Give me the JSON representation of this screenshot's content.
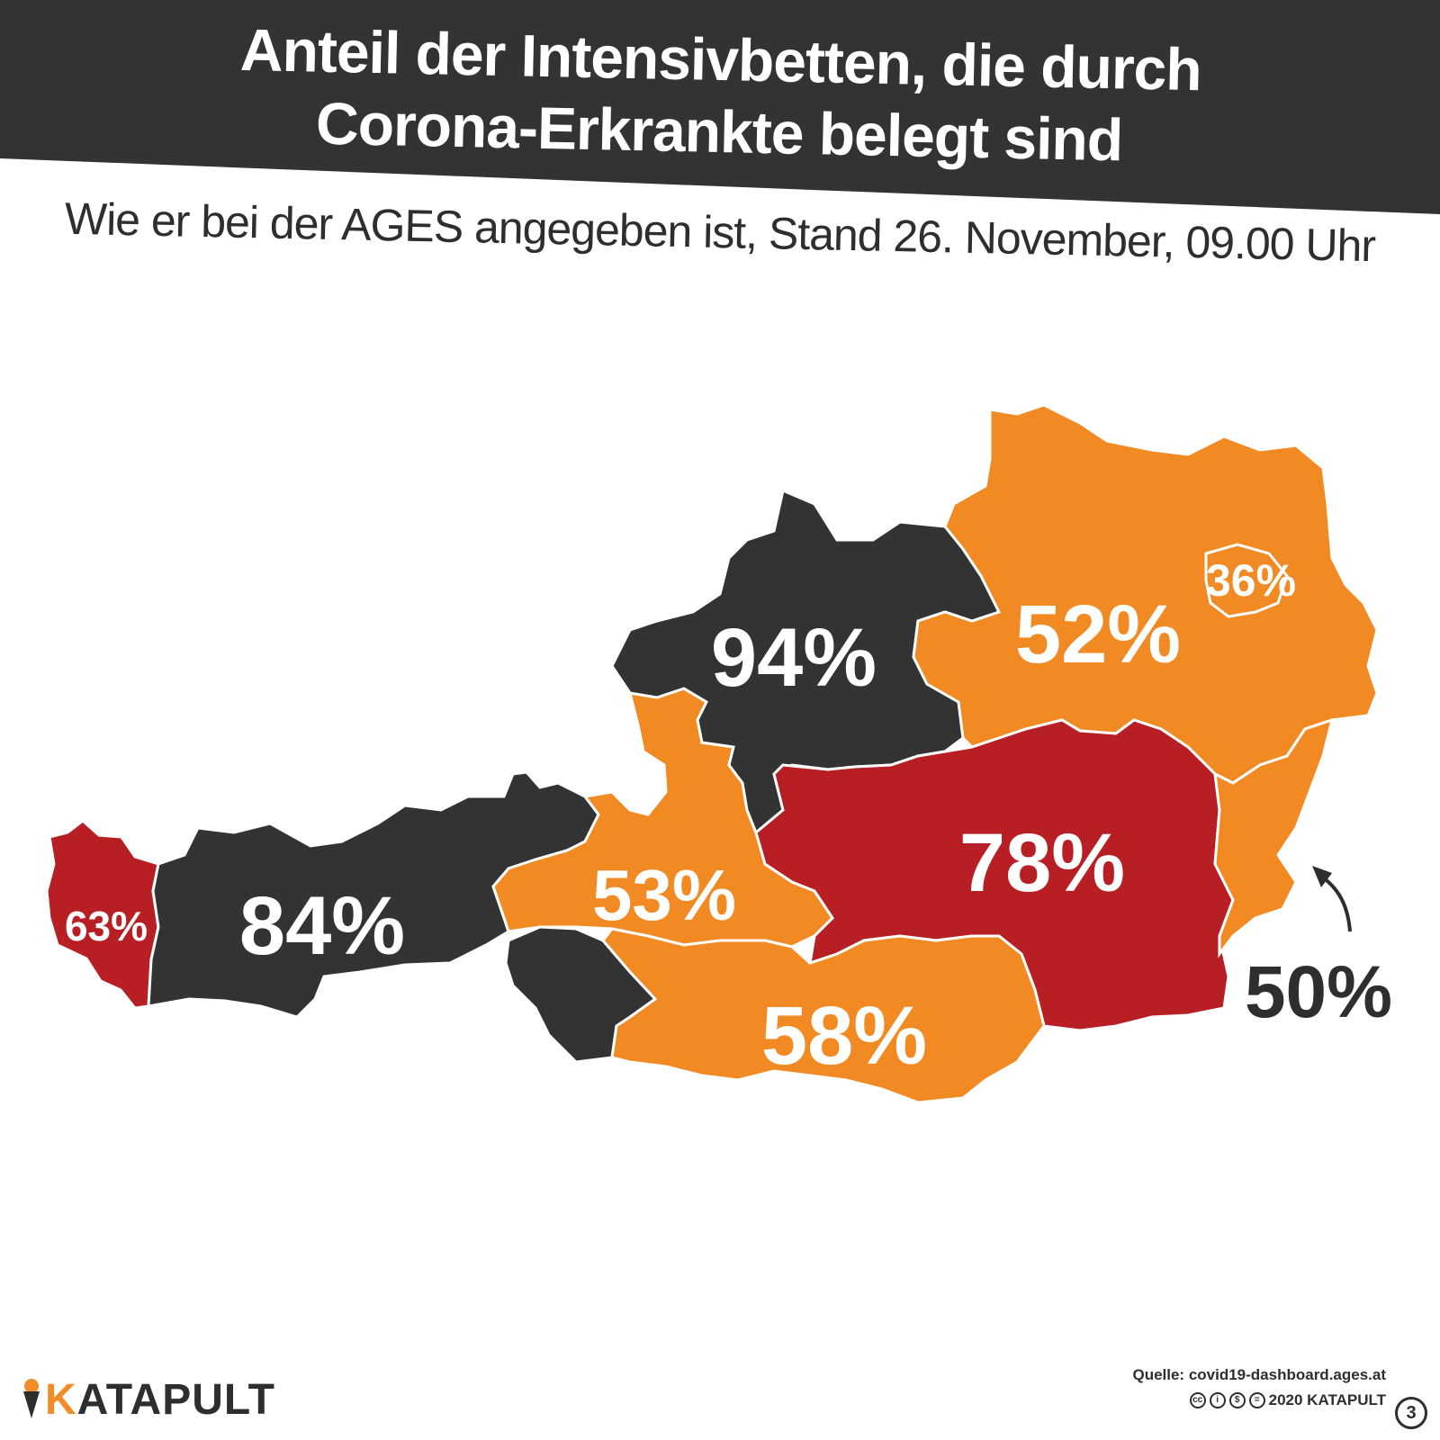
{
  "header": {
    "title_line1": "Anteil der Intensivbetten, die durch",
    "title_line2": "Corona-Erkrankte belegt sind",
    "subtitle": "Wie er bei der AGES angegeben ist, Stand 26. November, 09.00 Uhr"
  },
  "colors": {
    "dark": "#333333",
    "orange": "#f28a24",
    "red": "#b81f25",
    "white": "#ffffff"
  },
  "regions": [
    {
      "label": "63%",
      "value": 63,
      "fill": "red"
    },
    {
      "label": "84%",
      "value": 84,
      "fill": "dark"
    },
    {
      "label": "53%",
      "value": 53,
      "fill": "orange"
    },
    {
      "label": "94%",
      "value": 94,
      "fill": "dark"
    },
    {
      "label": "52%",
      "value": 52,
      "fill": "orange"
    },
    {
      "label": "36%",
      "value": 36,
      "fill": "orange"
    },
    {
      "label": "78%",
      "value": 78,
      "fill": "red"
    },
    {
      "label": "58%",
      "value": 58,
      "fill": "orange"
    },
    {
      "label": "50%",
      "value": 50,
      "fill": "orange"
    }
  ],
  "footer": {
    "logo_k": "K",
    "logo_rest": "ATAPULT",
    "source": "Quelle: covid19-dashboard.ages.at",
    "license": "2020 KATAPULT",
    "page_number": "3"
  }
}
